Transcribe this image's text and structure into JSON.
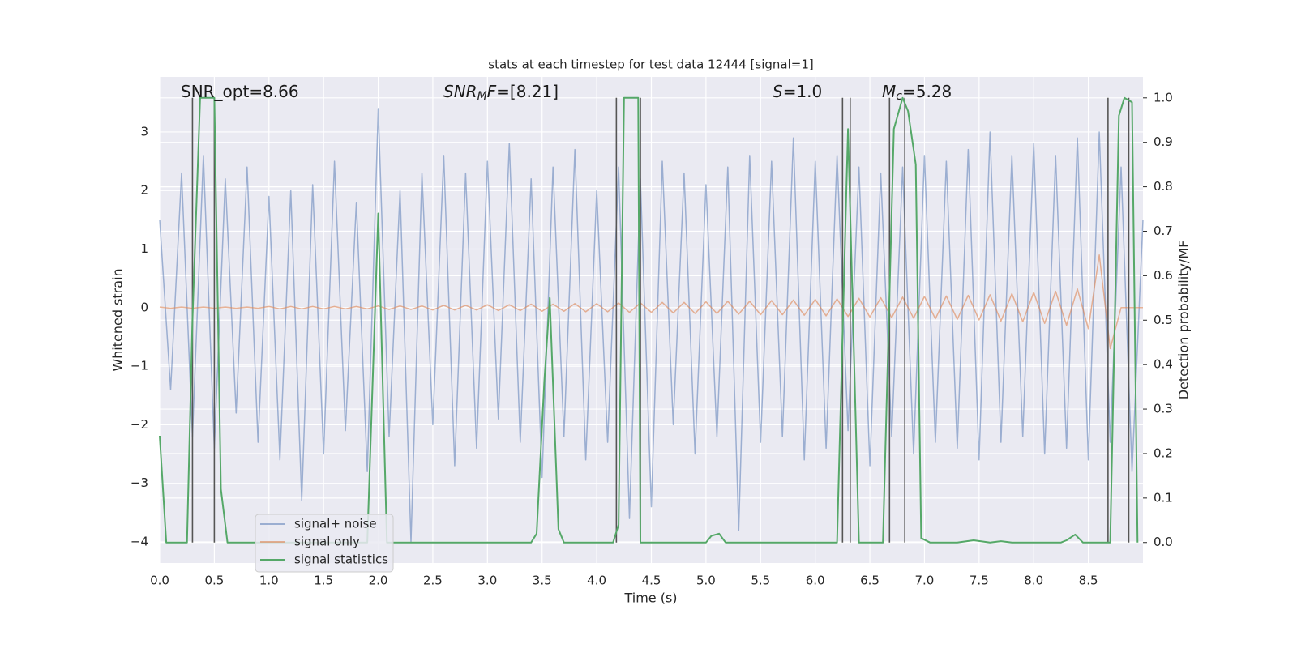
{
  "chart_data": {
    "type": "line",
    "title": "stats at each timestep for test data 12444 [signal=1]",
    "xlabel": "Time (s)",
    "ylabel": "Whitened strain",
    "y2label": "Detection probability/MF",
    "xlim": [
      0,
      9.0
    ],
    "ylim": [
      -4.36,
      3.94
    ],
    "y2lim": [
      -0.046,
      1.047
    ],
    "xticks": [
      {
        "value": 0,
        "label": "0.0"
      },
      {
        "value": 0.5,
        "label": "0.5"
      },
      {
        "value": 1,
        "label": "1.0"
      },
      {
        "value": 1.5,
        "label": "1.5"
      },
      {
        "value": 2,
        "label": "2.0"
      },
      {
        "value": 2.5,
        "label": "2.5"
      },
      {
        "value": 3,
        "label": "3.0"
      },
      {
        "value": 3.5,
        "label": "3.5"
      },
      {
        "value": 4,
        "label": "4.0"
      },
      {
        "value": 4.5,
        "label": "4.5"
      },
      {
        "value": 5,
        "label": "5.0"
      },
      {
        "value": 5.5,
        "label": "5.5"
      },
      {
        "value": 6,
        "label": "6.0"
      },
      {
        "value": 6.5,
        "label": "6.5"
      },
      {
        "value": 7,
        "label": "7.0"
      },
      {
        "value": 7.5,
        "label": "7.5"
      },
      {
        "value": 8,
        "label": "8.0"
      },
      {
        "value": 8.5,
        "label": "8.5"
      }
    ],
    "yticks": [
      {
        "value": -4,
        "label": "−4"
      },
      {
        "value": -3,
        "label": "−3"
      },
      {
        "value": -2,
        "label": "−2"
      },
      {
        "value": -1,
        "label": "−1"
      },
      0,
      1,
      2,
      3
    ],
    "y2ticks": [
      {
        "value": 0,
        "label": "0.0"
      },
      {
        "value": 0.1,
        "label": "0.1"
      },
      {
        "value": 0.2,
        "label": "0.2"
      },
      {
        "value": 0.3,
        "label": "0.3"
      },
      {
        "value": 0.4,
        "label": "0.4"
      },
      {
        "value": 0.5,
        "label": "0.5"
      },
      {
        "value": 0.6,
        "label": "0.6"
      },
      {
        "value": 0.7,
        "label": "0.7"
      },
      {
        "value": 0.8,
        "label": "0.8"
      },
      {
        "value": 0.9,
        "label": "0.9"
      },
      {
        "value": 1,
        "label": "1.0"
      }
    ],
    "grid": true,
    "legend": "lower left",
    "x": [
      0,
      0.1,
      0.2,
      0.3,
      0.4,
      0.5,
      0.6,
      0.7,
      0.8,
      0.9,
      1,
      1.1,
      1.2,
      1.3,
      1.4,
      1.5,
      1.6,
      1.7,
      1.8,
      1.9,
      2,
      2.1,
      2.2,
      2.3,
      2.4,
      2.5,
      2.6,
      2.7,
      2.8,
      2.9,
      3,
      3.1,
      3.2,
      3.3,
      3.4,
      3.5,
      3.6,
      3.7,
      3.8,
      3.9,
      4,
      4.1,
      4.2,
      4.3,
      4.4,
      4.5,
      4.6,
      4.7,
      4.8,
      4.9,
      5,
      5.1,
      5.2,
      5.3,
      5.4,
      5.5,
      5.6,
      5.7,
      5.8,
      5.9,
      6,
      6.1,
      6.2,
      6.3,
      6.4,
      6.5,
      6.6,
      6.7,
      6.8,
      6.9,
      7,
      7.1,
      7.2,
      7.3,
      7.4,
      7.5,
      7.6,
      7.7,
      7.8,
      7.9,
      8,
      8.1,
      8.2,
      8.3,
      8.4,
      8.5,
      8.6,
      8.7,
      8.8,
      8.9,
      9
    ],
    "series": [
      {
        "name": "signal+ noise",
        "color": "#4c72b0",
        "alpha": 0.5,
        "values": [
          1.5,
          -1.4,
          2.3,
          -2.2,
          2.6,
          -2.4,
          2.2,
          -1.8,
          2.4,
          -2.3,
          1.9,
          -2.6,
          2.0,
          -3.3,
          2.1,
          -2.5,
          2.5,
          -2.1,
          1.8,
          -2.8,
          3.4,
          -2.2,
          2.0,
          -4.0,
          2.3,
          -2.0,
          2.6,
          -2.7,
          2.3,
          -2.4,
          2.5,
          -1.9,
          2.8,
          -2.3,
          2.2,
          -2.9,
          2.4,
          -2.2,
          2.7,
          -2.6,
          2.0,
          -2.3,
          2.4,
          -3.6,
          2.2,
          -3.4,
          2.5,
          -2.0,
          2.3,
          -2.5,
          2.1,
          -2.2,
          2.4,
          -3.8,
          2.6,
          -2.3,
          2.5,
          -2.2,
          2.9,
          -2.6,
          2.5,
          -2.4,
          2.6,
          -2.1,
          2.4,
          -2.7,
          2.3,
          -2.2,
          2.4,
          -2.5,
          2.6,
          -2.3,
          2.5,
          -2.4,
          2.7,
          -2.6,
          3.0,
          -2.3,
          2.6,
          -2.2,
          2.8,
          -2.5,
          2.6,
          -2.4,
          2.9,
          -2.6,
          3.0,
          -2.3,
          2.4,
          -2.8,
          1.5
        ]
      },
      {
        "name": "signal only",
        "color": "#dd8452",
        "alpha": 0.6,
        "values": [
          0.01,
          -0.01,
          0.01,
          -0.01,
          0.01,
          -0.01,
          0.01,
          -0.01,
          0.01,
          -0.01,
          0.02,
          -0.02,
          0.02,
          -0.02,
          0.02,
          -0.02,
          0.02,
          -0.02,
          0.02,
          -0.02,
          0.03,
          -0.03,
          0.03,
          -0.03,
          0.03,
          -0.04,
          0.04,
          -0.04,
          0.04,
          -0.04,
          0.05,
          -0.05,
          0.05,
          -0.05,
          0.06,
          -0.06,
          0.06,
          -0.06,
          0.07,
          -0.07,
          0.07,
          -0.07,
          0.08,
          -0.08,
          0.08,
          -0.08,
          0.09,
          -0.09,
          0.09,
          -0.1,
          0.1,
          -0.1,
          0.11,
          -0.11,
          0.11,
          -0.12,
          0.12,
          -0.12,
          0.13,
          -0.13,
          0.14,
          -0.14,
          0.15,
          -0.15,
          0.16,
          -0.16,
          0.17,
          -0.17,
          0.18,
          -0.18,
          0.19,
          -0.19,
          0.2,
          -0.2,
          0.21,
          -0.21,
          0.22,
          -0.23,
          0.24,
          -0.24,
          0.26,
          -0.27,
          0.28,
          -0.3,
          0.32,
          -0.36,
          0.9,
          -0.7,
          0,
          0,
          0
        ]
      },
      {
        "name": "signal statistics",
        "color": "#55a868",
        "alpha": 1,
        "axis": "y2",
        "x": [
          0,
          0.06,
          0.25,
          0.3,
          0.37,
          0.5,
          0.56,
          0.62,
          1.9,
          2.0,
          2.08,
          3.4,
          3.45,
          3.52,
          3.57,
          3.65,
          3.7,
          4.15,
          4.2,
          4.25,
          4.38,
          4.4,
          5.0,
          5.05,
          5.12,
          5.18,
          6.2,
          6.3,
          6.4,
          6.62,
          6.72,
          6.8,
          6.85,
          6.92,
          6.97,
          7.05,
          7.3,
          7.45,
          7.6,
          7.7,
          7.8,
          8.25,
          8.3,
          8.38,
          8.45,
          8.7,
          8.78,
          8.83,
          8.9,
          8.95
        ],
        "values": [
          0.24,
          0,
          0,
          0.5,
          1,
          1,
          0.12,
          0,
          0,
          0.74,
          0,
          0,
          0.02,
          0.36,
          0.55,
          0.03,
          0,
          0,
          0.04,
          1,
          1,
          0,
          0,
          0.015,
          0.02,
          0,
          0,
          0.93,
          0,
          0,
          0.93,
          1,
          0.97,
          0.85,
          0.01,
          0,
          0,
          0.005,
          0,
          0.003,
          0,
          0,
          0.005,
          0.018,
          0,
          0,
          0.96,
          1,
          0.99,
          0
        ]
      }
    ],
    "vlines": {
      "x": [
        0.3,
        0.5,
        4.18,
        4.4,
        6.25,
        6.32,
        6.68,
        6.82,
        8.68,
        8.87
      ],
      "ymin": 0,
      "ymax": 1,
      "axis": "y2",
      "color": "#555555"
    },
    "annotations": [
      {
        "parts": [
          {
            "text": "SNR_opt=8.66"
          }
        ]
      },
      {
        "parts": [
          {
            "text": "SNR",
            "style": "italic"
          },
          {
            "text": "M",
            "style": "italic-sub"
          },
          {
            "text": "F",
            "style": "italic"
          },
          {
            "text": "=[8.21]"
          }
        ]
      },
      {
        "parts": [
          {
            "text": "S",
            "style": "italic"
          },
          {
            "text": "=1.0"
          }
        ]
      },
      {
        "parts": [
          {
            "text": "M",
            "style": "italic"
          },
          {
            "text": "c",
            "style": "italic-sub"
          },
          {
            "text": "=5.28"
          }
        ]
      }
    ]
  }
}
